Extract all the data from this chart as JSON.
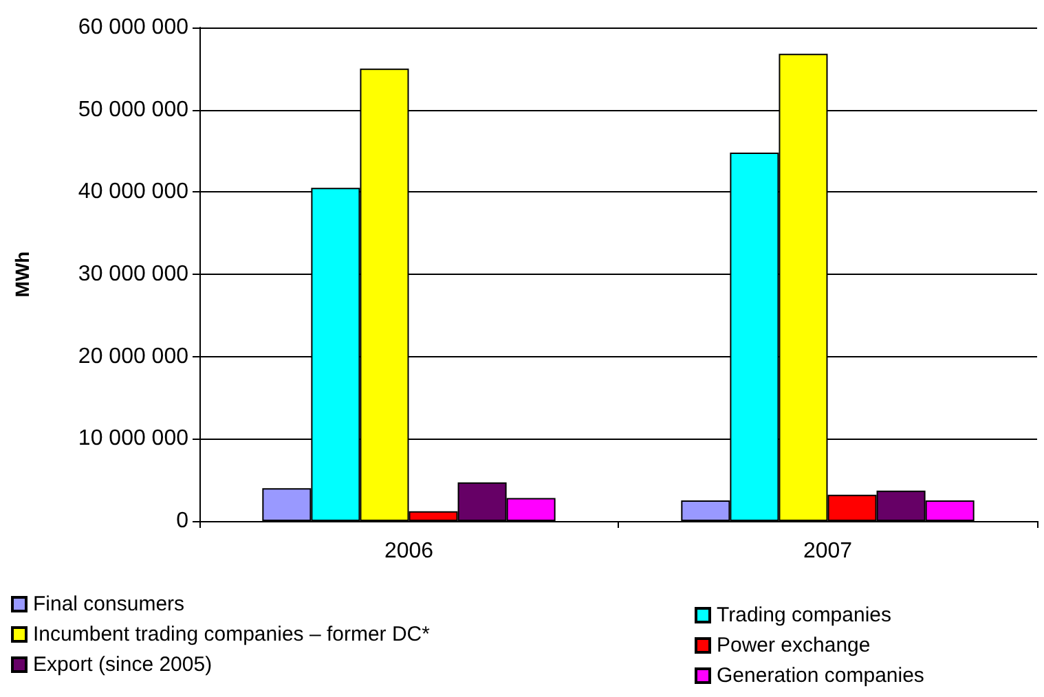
{
  "chart_data": {
    "type": "bar",
    "ylabel": "MWh",
    "categories": [
      "2006",
      "2007"
    ],
    "series": [
      {
        "name": "Final consumers",
        "color": "#9999ff",
        "values": [
          4000000,
          2500000
        ]
      },
      {
        "name": "Trading companies",
        "color": "#00ffff",
        "values": [
          40500000,
          44800000
        ]
      },
      {
        "name": "Incumbent trading companies – former DC*",
        "color": "#ffff00",
        "values": [
          55000000,
          56800000
        ]
      },
      {
        "name": "Power exchange",
        "color": "#ff0000",
        "values": [
          1200000,
          3200000
        ]
      },
      {
        "name": "Export (since 2005)",
        "color": "#660066",
        "values": [
          4700000,
          3700000
        ]
      },
      {
        "name": "Generation companies",
        "color": "#ff00ff",
        "values": [
          2800000,
          2500000
        ]
      }
    ],
    "ylim": [
      0,
      60000000
    ],
    "yticks": [
      {
        "value": 0,
        "label": "0"
      },
      {
        "value": 10000000,
        "label": "10 000 000"
      },
      {
        "value": 20000000,
        "label": "20 000 000"
      },
      {
        "value": 30000000,
        "label": "30 000 000"
      },
      {
        "value": 40000000,
        "label": "40 000 000"
      },
      {
        "value": 50000000,
        "label": "50 000 000"
      },
      {
        "value": 60000000,
        "label": "60 000 000"
      }
    ],
    "grid": "y",
    "legend": "bottom"
  }
}
